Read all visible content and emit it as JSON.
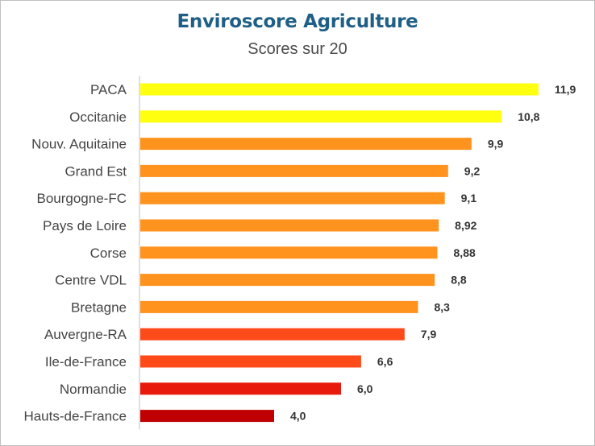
{
  "chart_data": {
    "type": "bar",
    "orientation": "horizontal",
    "title": "Enviroscore Agriculture",
    "subtitle": "Scores sur 20",
    "categories": [
      "PACA",
      "Occitanie",
      "Nouv. Aquitaine",
      "Grand Est",
      "Bourgogne-FC",
      "Pays de Loire",
      "Corse",
      "Centre VDL",
      "Bretagne",
      "Auvergne-RA",
      "Ile-de-France",
      "Normandie",
      "Hauts-de-France"
    ],
    "values": [
      11.9,
      10.8,
      9.9,
      9.2,
      9.1,
      8.92,
      8.88,
      8.8,
      8.3,
      7.9,
      6.6,
      6.0,
      4.0
    ],
    "value_labels": [
      "11,9",
      "10,8",
      "9,9",
      "9,2",
      "9,1",
      "8,92",
      "8,88",
      "8,8",
      "8,3",
      "7,9",
      "6,6",
      "6,0",
      "4,0"
    ],
    "colors": [
      "#ffff10",
      "#ffff10",
      "#ff931e",
      "#ff931e",
      "#ff931e",
      "#ff931e",
      "#ff931e",
      "#ff931e",
      "#ff931e",
      "#ff4a1a",
      "#ff4a1a",
      "#e81a0c",
      "#c00000"
    ],
    "xlim": [
      0,
      12
    ],
    "grid": false,
    "legend": "none",
    "xlabel": "",
    "ylabel": ""
  }
}
